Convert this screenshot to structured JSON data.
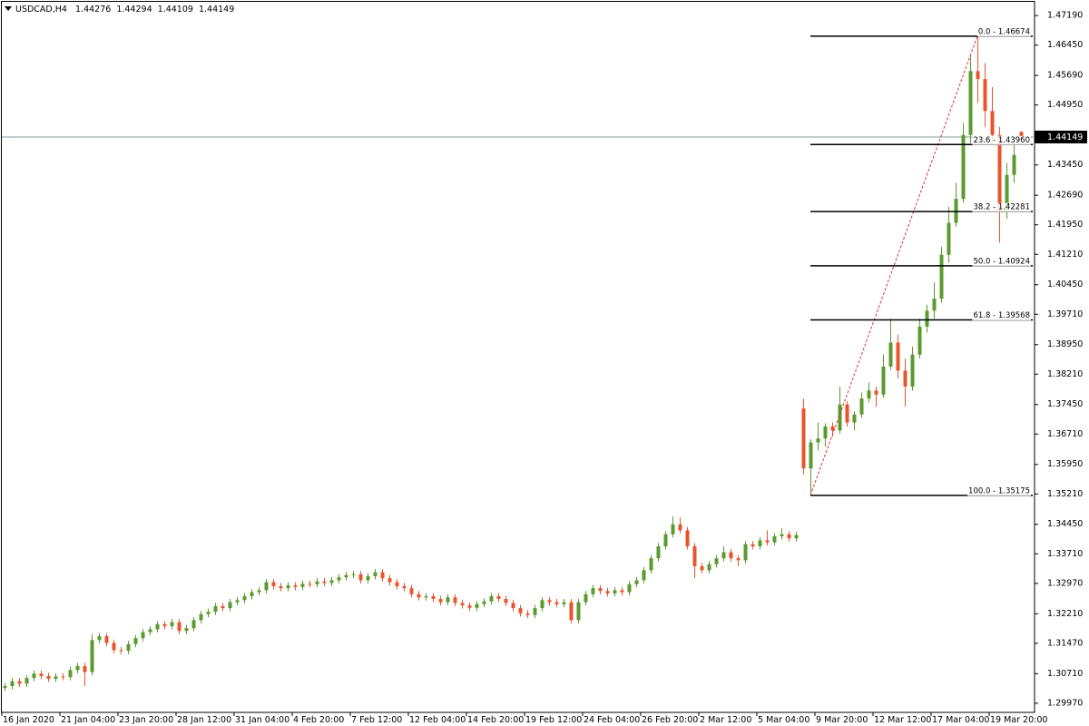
{
  "chart_data": {
    "type": "candlestick",
    "symbol": "USDCAD,H4",
    "up_color": "#5b9a2e",
    "down_color": "#e8552d",
    "price_line_color": "#7f9c9c",
    "ylim": [
      1.2974,
      1.4758
    ],
    "yticks": [
      {
        "value": 1.4719,
        "label": "1.47190"
      },
      {
        "value": 1.4645,
        "label": "1.46450"
      },
      {
        "value": 1.4569,
        "label": "1.45690"
      },
      {
        "value": 1.4495,
        "label": "1.44950"
      },
      {
        "value": 1.4421,
        "label": "1.44210"
      },
      {
        "value": 1.4345,
        "label": "1.43450"
      },
      {
        "value": 1.4269,
        "label": "1.42690"
      },
      {
        "value": 1.4195,
        "label": "1.41950"
      },
      {
        "value": 1.4121,
        "label": "1.41210"
      },
      {
        "value": 1.4045,
        "label": "1.40450"
      },
      {
        "value": 1.3971,
        "label": "1.39710"
      },
      {
        "value": 1.3895,
        "label": "1.38950"
      },
      {
        "value": 1.3821,
        "label": "1.38210"
      },
      {
        "value": 1.3745,
        "label": "1.37450"
      },
      {
        "value": 1.3671,
        "label": "1.36710"
      },
      {
        "value": 1.3595,
        "label": "1.35950"
      },
      {
        "value": 1.3521,
        "label": "1.35210"
      },
      {
        "value": 1.3445,
        "label": "1.34450"
      },
      {
        "value": 1.3371,
        "label": "1.33710"
      },
      {
        "value": 1.3297,
        "label": "1.32970"
      },
      {
        "value": 1.3221,
        "label": "1.32210"
      },
      {
        "value": 1.3147,
        "label": "1.31470"
      },
      {
        "value": 1.3071,
        "label": "1.30710"
      },
      {
        "value": 1.2997,
        "label": "1.29970"
      }
    ],
    "categories": [
      "16 Jan 2020",
      null,
      null,
      null,
      null,
      null,
      null,
      null,
      "21 Jan 04:00",
      null,
      null,
      null,
      null,
      null,
      null,
      null,
      "23 Jan 20:00",
      null,
      null,
      null,
      null,
      null,
      null,
      null,
      "28 Jan 12:00",
      null,
      null,
      null,
      null,
      null,
      null,
      null,
      "31 Jan 04:00",
      null,
      null,
      null,
      null,
      null,
      null,
      null,
      "4 Feb 20:00",
      null,
      null,
      null,
      null,
      null,
      null,
      null,
      "7 Feb 12:00",
      null,
      null,
      null,
      null,
      null,
      null,
      null,
      "12 Feb 04:00",
      null,
      null,
      null,
      null,
      null,
      null,
      null,
      "14 Feb 20:00",
      null,
      null,
      null,
      null,
      null,
      null,
      null,
      "19 Feb 12:00",
      null,
      null,
      null,
      null,
      null,
      null,
      null,
      "24 Feb 04:00",
      null,
      null,
      null,
      null,
      null,
      null,
      null,
      "26 Feb 20:00",
      null,
      null,
      null,
      null,
      null,
      null,
      null,
      "2 Mar 12:00",
      null,
      null,
      null,
      null,
      null,
      null,
      null,
      "5 Mar 04:00",
      null,
      null,
      null,
      null,
      null,
      null,
      null,
      "9 Mar 20:00",
      null,
      null,
      null,
      null,
      null,
      null,
      null,
      "12 Mar 12:00",
      null,
      null,
      null,
      null,
      null,
      null,
      null,
      "17 Mar 04:00",
      null,
      null,
      null,
      null,
      null,
      null,
      null,
      "19 Mar 20:00",
      null,
      null,
      null,
      null
    ],
    "candles": [
      [
        1.3035,
        1.3048,
        1.3027,
        1.304
      ],
      [
        1.304,
        1.306,
        1.3032,
        1.3052
      ],
      [
        1.3052,
        1.306,
        1.3038,
        1.3046
      ],
      [
        1.3046,
        1.3068,
        1.3038,
        1.306
      ],
      [
        1.306,
        1.3079,
        1.3052,
        1.3071
      ],
      [
        1.3071,
        1.3079,
        1.3057,
        1.3065
      ],
      [
        1.3065,
        1.3073,
        1.305,
        1.3058
      ],
      [
        1.3058,
        1.3072,
        1.305,
        1.3064
      ],
      [
        1.3064,
        1.3072,
        1.3054,
        1.3062
      ],
      [
        1.3062,
        1.3088,
        1.3054,
        1.308
      ],
      [
        1.308,
        1.3098,
        1.3072,
        1.309
      ],
      [
        1.309,
        1.3098,
        1.304,
        1.3075
      ],
      [
        1.3075,
        1.317,
        1.3067,
        1.3155
      ],
      [
        1.3155,
        1.3173,
        1.3147,
        1.3165
      ],
      [
        1.3165,
        1.3173,
        1.314,
        1.3148
      ],
      [
        1.3148,
        1.3156,
        1.3122,
        1.313
      ],
      [
        1.313,
        1.3138,
        1.312,
        1.3128
      ],
      [
        1.3128,
        1.3153,
        1.312,
        1.3145
      ],
      [
        1.3145,
        1.3168,
        1.3137,
        1.316
      ],
      [
        1.316,
        1.3183,
        1.3152,
        1.3175
      ],
      [
        1.3175,
        1.319,
        1.3167,
        1.3182
      ],
      [
        1.3182,
        1.3203,
        1.3174,
        1.3195
      ],
      [
        1.3195,
        1.3203,
        1.3182,
        1.319
      ],
      [
        1.319,
        1.3208,
        1.3182,
        1.32
      ],
      [
        1.32,
        1.3208,
        1.317,
        1.3178
      ],
      [
        1.3178,
        1.3193,
        1.317,
        1.3185
      ],
      [
        1.3185,
        1.3213,
        1.3177,
        1.3205
      ],
      [
        1.3205,
        1.3228,
        1.3197,
        1.322
      ],
      [
        1.322,
        1.3234,
        1.3212,
        1.3226
      ],
      [
        1.3226,
        1.3248,
        1.3218,
        1.324
      ],
      [
        1.324,
        1.3248,
        1.3227,
        1.3235
      ],
      [
        1.3235,
        1.3258,
        1.3227,
        1.325
      ],
      [
        1.325,
        1.3263,
        1.3242,
        1.3255
      ],
      [
        1.3255,
        1.3273,
        1.3247,
        1.3265
      ],
      [
        1.3265,
        1.3283,
        1.3257,
        1.3275
      ],
      [
        1.3275,
        1.3288,
        1.3267,
        1.328
      ],
      [
        1.328,
        1.3308,
        1.3272,
        1.33
      ],
      [
        1.33,
        1.3308,
        1.3282,
        1.329
      ],
      [
        1.329,
        1.3298,
        1.3277,
        1.3285
      ],
      [
        1.3285,
        1.33,
        1.3277,
        1.3292
      ],
      [
        1.3292,
        1.33,
        1.328,
        1.3288
      ],
      [
        1.3288,
        1.3304,
        1.328,
        1.3296
      ],
      [
        1.3296,
        1.3304,
        1.3287,
        1.3295
      ],
      [
        1.3295,
        1.331,
        1.3287,
        1.3302
      ],
      [
        1.3302,
        1.331,
        1.329,
        1.3298
      ],
      [
        1.3298,
        1.3313,
        1.329,
        1.3305
      ],
      [
        1.3305,
        1.332,
        1.3297,
        1.3312
      ],
      [
        1.3312,
        1.3326,
        1.3304,
        1.3318
      ],
      [
        1.3318,
        1.3328,
        1.331,
        1.332
      ],
      [
        1.332,
        1.3328,
        1.3297,
        1.3305
      ],
      [
        1.3305,
        1.3323,
        1.3297,
        1.3315
      ],
      [
        1.3315,
        1.3333,
        1.3307,
        1.3325
      ],
      [
        1.3325,
        1.3333,
        1.3302,
        1.331
      ],
      [
        1.331,
        1.3318,
        1.3292,
        1.33
      ],
      [
        1.33,
        1.3308,
        1.3282,
        1.329
      ],
      [
        1.329,
        1.3298,
        1.3277,
        1.3285
      ],
      [
        1.3285,
        1.3293,
        1.3262,
        1.327
      ],
      [
        1.327,
        1.3278,
        1.3254,
        1.3262
      ],
      [
        1.3262,
        1.3273,
        1.3254,
        1.3265
      ],
      [
        1.3265,
        1.3273,
        1.325,
        1.3258
      ],
      [
        1.3258,
        1.3266,
        1.3242,
        1.325
      ],
      [
        1.325,
        1.327,
        1.3242,
        1.3262
      ],
      [
        1.3262,
        1.327,
        1.324,
        1.3248
      ],
      [
        1.3248,
        1.3256,
        1.3234,
        1.3242
      ],
      [
        1.3242,
        1.325,
        1.3228,
        1.3236
      ],
      [
        1.3236,
        1.3253,
        1.3228,
        1.3245
      ],
      [
        1.3245,
        1.326,
        1.3237,
        1.3252
      ],
      [
        1.3252,
        1.3273,
        1.3244,
        1.3265
      ],
      [
        1.3265,
        1.3273,
        1.325,
        1.3258
      ],
      [
        1.3258,
        1.3266,
        1.324,
        1.3248
      ],
      [
        1.3248,
        1.3256,
        1.3227,
        1.3235
      ],
      [
        1.3235,
        1.3243,
        1.3214,
        1.3222
      ],
      [
        1.3222,
        1.323,
        1.321,
        1.3218
      ],
      [
        1.3218,
        1.3243,
        1.321,
        1.3235
      ],
      [
        1.3235,
        1.3263,
        1.3227,
        1.3255
      ],
      [
        1.3255,
        1.3263,
        1.3242,
        1.325
      ],
      [
        1.325,
        1.3258,
        1.3237,
        1.3245
      ],
      [
        1.3245,
        1.3258,
        1.3237,
        1.325
      ],
      [
        1.325,
        1.3258,
        1.3197,
        1.3205
      ],
      [
        1.3205,
        1.3258,
        1.3197,
        1.325
      ],
      [
        1.325,
        1.3278,
        1.3242,
        1.327
      ],
      [
        1.327,
        1.3293,
        1.3262,
        1.3285
      ],
      [
        1.3285,
        1.3293,
        1.327,
        1.3278
      ],
      [
        1.3278,
        1.3286,
        1.3264,
        1.3272
      ],
      [
        1.3272,
        1.3288,
        1.3264,
        1.328
      ],
      [
        1.328,
        1.3288,
        1.3267,
        1.3275
      ],
      [
        1.3275,
        1.3303,
        1.3267,
        1.3295
      ],
      [
        1.3295,
        1.3313,
        1.3287,
        1.3305
      ],
      [
        1.3305,
        1.3338,
        1.3297,
        1.333
      ],
      [
        1.333,
        1.3368,
        1.3322,
        1.336
      ],
      [
        1.336,
        1.3398,
        1.3352,
        1.339
      ],
      [
        1.339,
        1.3428,
        1.3382,
        1.342
      ],
      [
        1.342,
        1.3465,
        1.3412,
        1.3445
      ],
      [
        1.3445,
        1.3462,
        1.3422,
        1.343
      ],
      [
        1.343,
        1.3438,
        1.3382,
        1.339
      ],
      [
        1.339,
        1.3398,
        1.331,
        1.334
      ],
      [
        1.334,
        1.3348,
        1.3322,
        1.333
      ],
      [
        1.333,
        1.3353,
        1.3322,
        1.3345
      ],
      [
        1.3345,
        1.3368,
        1.3337,
        1.336
      ],
      [
        1.336,
        1.339,
        1.3352,
        1.3375
      ],
      [
        1.3375,
        1.3383,
        1.3352,
        1.336
      ],
      [
        1.336,
        1.3368,
        1.334,
        1.3355
      ],
      [
        1.3355,
        1.3403,
        1.3347,
        1.3395
      ],
      [
        1.3395,
        1.3403,
        1.3382,
        1.339
      ],
      [
        1.339,
        1.3413,
        1.3382,
        1.3405
      ],
      [
        1.3405,
        1.343,
        1.3392,
        1.34
      ],
      [
        1.34,
        1.3423,
        1.3392,
        1.3415
      ],
      [
        1.3415,
        1.3435,
        1.3407,
        1.342
      ],
      [
        1.342,
        1.3428,
        1.3402,
        1.341
      ],
      [
        1.341,
        1.3426,
        1.3402,
        1.3418
      ],
      [
        1.3735,
        1.376,
        1.357,
        1.3585
      ],
      [
        1.3585,
        1.3658,
        1.35175,
        1.365
      ],
      [
        1.365,
        1.37,
        1.363,
        1.366
      ],
      [
        1.366,
        1.3698,
        1.364,
        1.369
      ],
      [
        1.369,
        1.37,
        1.3665,
        1.368
      ],
      [
        1.368,
        1.379,
        1.3672,
        1.3745
      ],
      [
        1.3745,
        1.3753,
        1.369,
        1.37
      ],
      [
        1.37,
        1.3728,
        1.368,
        1.372
      ],
      [
        1.372,
        1.3775,
        1.3712,
        1.376
      ],
      [
        1.376,
        1.38,
        1.375,
        1.378
      ],
      [
        1.378,
        1.379,
        1.374,
        1.377
      ],
      [
        1.377,
        1.387,
        1.3762,
        1.384
      ],
      [
        1.384,
        1.396,
        1.3832,
        1.39
      ],
      [
        1.39,
        1.392,
        1.381,
        1.383
      ],
      [
        1.383,
        1.386,
        1.374,
        1.379
      ],
      [
        1.379,
        1.389,
        1.378,
        1.387
      ],
      [
        1.387,
        1.396,
        1.386,
        1.394
      ],
      [
        1.394,
        1.3995,
        1.3925,
        1.398
      ],
      [
        1.398,
        1.405,
        1.396,
        1.401
      ],
      [
        1.401,
        1.414,
        1.4,
        1.412
      ],
      [
        1.412,
        1.424,
        1.41,
        1.42
      ],
      [
        1.42,
        1.43,
        1.419,
        1.426
      ],
      [
        1.426,
        1.445,
        1.425,
        1.442
      ],
      [
        1.442,
        1.462,
        1.44,
        1.458
      ],
      [
        1.458,
        1.46674,
        1.45,
        1.456
      ],
      [
        1.456,
        1.46,
        1.444,
        1.448
      ],
      [
        1.448,
        1.454,
        1.44,
        1.442
      ],
      [
        1.442,
        1.444,
        1.415,
        1.423
      ],
      [
        1.423,
        1.435,
        1.421,
        1.432
      ],
      [
        1.432,
        1.44,
        1.43,
        1.437
      ],
      [
        1.44276,
        1.44294,
        1.44109,
        1.44149
      ]
    ],
    "fib": {
      "color": "#000000",
      "trend_color": "#e03030",
      "levels": [
        {
          "label": "0.0 - 1.46674",
          "value": 1.46674
        },
        {
          "label": "23.6 - 1.43960",
          "value": 1.4396
        },
        {
          "label": "38.2 - 1.42281",
          "value": 1.42281
        },
        {
          "label": "50.0 - 1.40924",
          "value": 1.40924
        },
        {
          "label": "61.8 - 1.39568",
          "value": 1.39568
        },
        {
          "label": "100.0 - 1.35175",
          "value": 1.35175
        }
      ]
    }
  }
}
